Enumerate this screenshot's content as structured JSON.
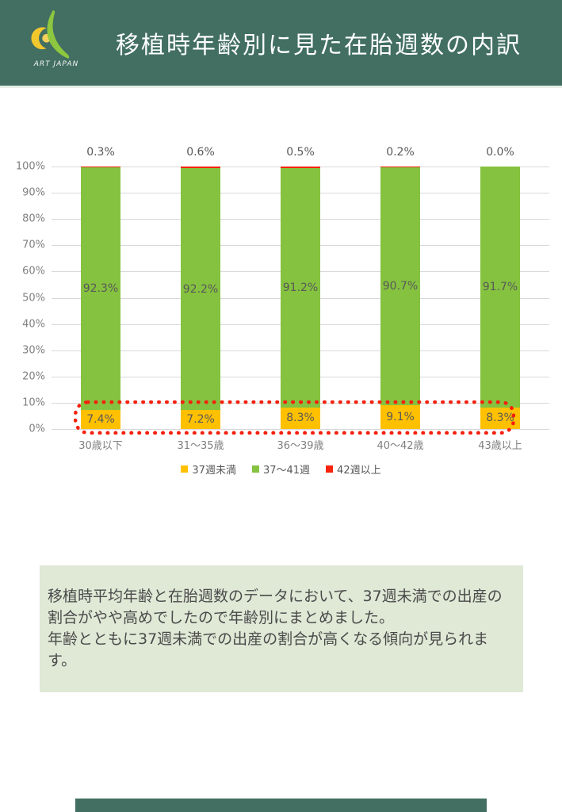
{
  "header": {
    "title": "移植時年齢別に見た在胎週数の内訳",
    "brand": "ART JAPAN"
  },
  "colors": {
    "header_bg": "#426F62",
    "footer_bg": "#426F62",
    "note_bg": "#DFE9D6",
    "gridline": "#D9D9D9",
    "axis_text": "#808080",
    "label_text": "#595959",
    "highlight_border": "#F41F0D",
    "logo_yellow": "#F2C72E",
    "logo_green": "#8DC63F"
  },
  "chart_data": {
    "type": "bar",
    "stacked": true,
    "orientation": "vertical",
    "grid": true,
    "legend_position": "bottom",
    "ylim": [
      0,
      100
    ],
    "y_ticks": [
      "100%",
      "90%",
      "80%",
      "70%",
      "60%",
      "50%",
      "40%",
      "30%",
      "20%",
      "10%",
      "0%"
    ],
    "categories": [
      "30歳以下",
      "31〜35歳",
      "36〜39歳",
      "40〜42歳",
      "43歳以上"
    ],
    "series": [
      {
        "name": "37週未満",
        "color": "#FFC000",
        "values": [
          7.4,
          7.2,
          8.3,
          9.1,
          8.3
        ]
      },
      {
        "name": "37〜41週",
        "color": "#85C23F",
        "values": [
          92.3,
          92.2,
          91.2,
          90.7,
          91.7
        ]
      },
      {
        "name": "42週以上",
        "color": "#F7230C",
        "values": [
          0.3,
          0.6,
          0.5,
          0.2,
          0.0
        ]
      }
    ],
    "annotation": "red dotted rounded outline around the 37週未満 (bottom) segments of all bars"
  },
  "note": {
    "paragraph1": "移植時平均年齢と在胎週数のデータにおいて、37週未満での出産の割合がやや高めでしたので年齢別にまとめました。",
    "paragraph2": "年齢とともに37週未満での出産の割合が高くなる傾向が見られます。"
  }
}
